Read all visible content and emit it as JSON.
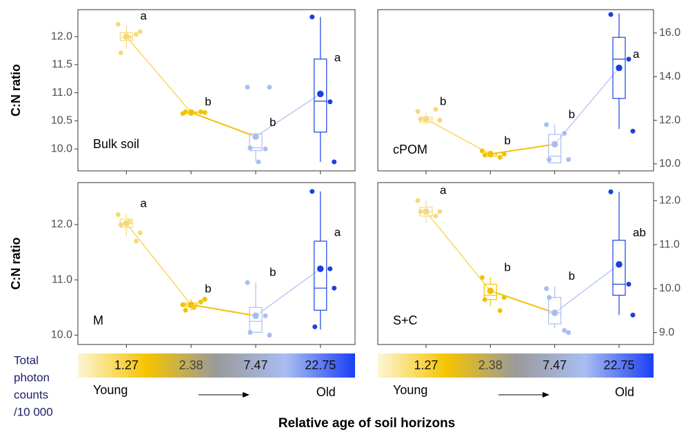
{
  "chart_data": [
    {
      "type": "box",
      "label": "Bulk soil",
      "ylabel": "C:N ratio",
      "y_axis_side": "left",
      "categories": [
        null,
        null,
        null,
        null
      ],
      "colors": [
        "#f5d97a",
        "#f2c200",
        "#a9bdf2",
        "#1a3fe0"
      ],
      "ylim": [
        9.61,
        12.48
      ],
      "yticks": [
        {
          "value": 10,
          "label": "10.0"
        },
        10.5,
        {
          "value": 11,
          "label": "11.0"
        },
        11.5,
        {
          "value": 12,
          "label": "12.0"
        }
      ],
      "boxes": [
        {
          "q1": 11.93,
          "median": 11.99,
          "q3": 12.07,
          "whisker_low": 11.78,
          "whisker_high": 12.2,
          "mean": 12.0,
          "points": [
            12.22,
            12.04,
            12.09,
            11.71,
            11.99
          ],
          "letter": "a"
        },
        {
          "q1": 10.64,
          "median": 10.65,
          "q3": 10.66,
          "whisker_low": 10.63,
          "whisker_high": 10.66,
          "mean": 10.65,
          "points": [
            10.63,
            10.66,
            10.65,
            10.66
          ],
          "letter": "b"
        },
        {
          "q1": 9.97,
          "median": 10.02,
          "q3": 10.27,
          "whisker_low": 9.78,
          "whisker_high": 10.29,
          "mean": 10.22,
          "points": [
            11.1,
            10.0,
            11.1,
            10.02,
            9.77
          ],
          "letter": "b"
        },
        {
          "q1": 10.3,
          "median": 10.85,
          "q3": 11.6,
          "whisker_low": 9.77,
          "whisker_high": 12.35,
          "mean": 10.98,
          "points": [
            12.35,
            10.84,
            9.77
          ],
          "letter": "a"
        }
      ]
    },
    {
      "type": "box",
      "label": "cPOM",
      "y_axis_side": "right",
      "categories": [
        null,
        null,
        null,
        null
      ],
      "colors": [
        "#f5d97a",
        "#f2c200",
        "#a9bdf2",
        "#1a3fe0"
      ],
      "ylim": [
        9.68,
        17.07
      ],
      "yticks": [
        {
          "value": 10,
          "label": "10.0"
        },
        {
          "value": 12,
          "label": "12.0"
        },
        {
          "value": 14,
          "label": "14.0"
        },
        {
          "value": 16,
          "label": "16.0"
        }
      ],
      "boxes": [
        {
          "q1": 11.9,
          "median": 12.05,
          "q3": 12.15,
          "whisker_low": 11.8,
          "whisker_high": 12.4,
          "mean": 12.05,
          "points": [
            12.4,
            12.5,
            12.0,
            12.05
          ],
          "letter": "b"
        },
        {
          "q1": 10.35,
          "median": 10.45,
          "q3": 10.5,
          "whisker_low": 10.3,
          "whisker_high": 10.6,
          "mean": 10.45,
          "points": [
            10.6,
            10.3,
            10.45,
            10.4
          ],
          "letter": "b"
        },
        {
          "q1": 10.05,
          "median": 10.35,
          "q3": 11.35,
          "whisker_low": 10.05,
          "whisker_high": 11.8,
          "mean": 10.9,
          "points": [
            11.8,
            11.4,
            10.2,
            10.2
          ],
          "letter": "b"
        },
        {
          "q1": 13.0,
          "median": 14.8,
          "q3": 15.8,
          "whisker_low": 11.6,
          "whisker_high": 16.9,
          "mean": 14.4,
          "points": [
            16.85,
            14.8,
            11.5
          ],
          "letter": "a"
        }
      ]
    },
    {
      "type": "box",
      "label": "M",
      "ylabel": "C:N ratio",
      "y_axis_side": "left",
      "categories": [
        null,
        null,
        null,
        null
      ],
      "colors": [
        "#f5d97a",
        "#f2c200",
        "#a9bdf2",
        "#1a3fe0"
      ],
      "ylim": [
        9.83,
        12.76
      ],
      "yticks": [
        {
          "value": 10,
          "label": "10.0"
        },
        {
          "value": 11,
          "label": "11.0"
        },
        {
          "value": 12,
          "label": "12.0"
        }
      ],
      "boxes": [
        {
          "q1": 11.95,
          "median": 12.02,
          "q3": 12.1,
          "whisker_low": 11.8,
          "whisker_high": 12.2,
          "mean": 12.02,
          "points": [
            12.18,
            11.7,
            11.85,
            12.0,
            12.05
          ],
          "letter": "a"
        },
        {
          "q1": 10.52,
          "median": 10.55,
          "q3": 10.58,
          "whisker_low": 10.45,
          "whisker_high": 10.65,
          "mean": 10.55,
          "points": [
            10.55,
            10.6,
            10.65,
            10.45,
            10.5
          ],
          "letter": "b"
        },
        {
          "q1": 10.05,
          "median": 10.25,
          "q3": 10.5,
          "whisker_low": 10.05,
          "whisker_high": 10.95,
          "mean": 10.35,
          "points": [
            10.95,
            10.35,
            10.0,
            10.05
          ],
          "letter": "b"
        },
        {
          "q1": 10.45,
          "median": 10.85,
          "q3": 11.7,
          "whisker_low": 10.1,
          "whisker_high": 12.6,
          "mean": 11.2,
          "points": [
            12.6,
            11.2,
            10.85,
            10.15
          ],
          "letter": "a"
        }
      ]
    },
    {
      "type": "box",
      "label": "S+C",
      "y_axis_side": "right",
      "categories": [
        null,
        null,
        null,
        null
      ],
      "colors": [
        "#f5d97a",
        "#f2c200",
        "#a9bdf2",
        "#1a3fe0"
      ],
      "ylim": [
        8.73,
        12.41
      ],
      "yticks": [
        {
          "value": 9,
          "label": "9.0"
        },
        {
          "value": 10,
          "label": "10.0"
        },
        {
          "value": 11,
          "label": "11.0"
        },
        {
          "value": 12,
          "label": "12.0"
        }
      ],
      "boxes": [
        {
          "q1": 11.65,
          "median": 11.75,
          "q3": 11.85,
          "whisker_low": 11.5,
          "whisker_high": 12.0,
          "mean": 11.75,
          "points": [
            12.0,
            11.65,
            11.75,
            11.75
          ],
          "letter": "a"
        },
        {
          "q1": 9.75,
          "median": 9.85,
          "q3": 10.1,
          "whisker_low": 9.6,
          "whisker_high": 10.25,
          "mean": 9.95,
          "points": [
            10.25,
            9.5,
            9.8,
            9.75
          ],
          "letter": "b"
        },
        {
          "q1": 9.2,
          "median": 9.45,
          "q3": 9.8,
          "whisker_low": 9.1,
          "whisker_high": 10.05,
          "mean": 9.45,
          "points": [
            10.0,
            9.05,
            9.0,
            9.8
          ],
          "letter": "b"
        },
        {
          "q1": 9.85,
          "median": 10.1,
          "q3": 11.1,
          "whisker_low": 9.4,
          "whisker_high": 12.2,
          "mean": 10.55,
          "points": [
            12.2,
            10.1,
            9.4
          ],
          "letter": "ab"
        }
      ]
    }
  ],
  "legend": {
    "title_lines": [
      "Total",
      "photon",
      "counts",
      "/10 000"
    ],
    "labels": [
      1.27,
      2.38,
      7.47,
      22.75
    ],
    "colors": [
      "#fdf5d6",
      "#f5c400",
      "#9a9a9a",
      "#a9bdf2",
      "#1a3ff5"
    ],
    "young": "Young",
    "old": "Old"
  },
  "x_label": "Relative age of soil horizons"
}
